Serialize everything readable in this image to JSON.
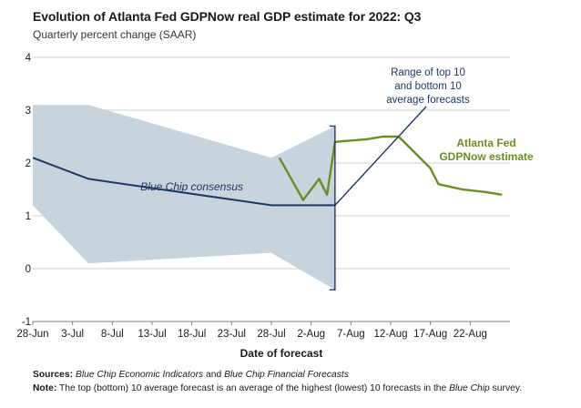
{
  "header": {
    "title": "Evolution of Atlanta Fed GDPNow real GDP estimate for 2022: Q3",
    "subtitle": "Quarterly percent change (SAAR)"
  },
  "footer": {
    "sources_label": "Sources:",
    "sources_text_1": "Blue Chip Economic Indicators",
    "sources_text_2": " and ",
    "sources_text_3": "Blue Chip Financial Forecasts",
    "note_label": "Note:",
    "note_text_1": " The top (bottom) 10 average forecast is an average of the highest (lowest) 10 forecasts in the ",
    "note_text_2": "Blue Chip",
    "note_text_3": " survey."
  },
  "chart_data": {
    "type": "line",
    "title": "Evolution of Atlanta Fed GDPNow real GDP estimate for 2022: Q3",
    "subtitle": "Quarterly percent change (SAAR)",
    "xlabel": "Date of forecast",
    "ylabel": "",
    "ylim": [
      -1,
      4
    ],
    "yticks": [
      -1,
      0,
      1,
      2,
      3,
      4
    ],
    "x_start": "28-Jun",
    "x_end": "27-Aug",
    "xticks": [
      "28-Jun",
      "3-Jul",
      "8-Jul",
      "13-Jul",
      "18-Jul",
      "23-Jul",
      "28-Jul",
      "2-Aug",
      "7-Aug",
      "12-Aug",
      "17-Aug",
      "22-Aug"
    ],
    "grid": "horizontal",
    "colors": {
      "blue_chip": "#1f3864",
      "gdpnow": "#6b8e23",
      "range": "#c7d3dd",
      "annotation": "#1f3864"
    },
    "series": [
      {
        "name": "Blue Chip consensus",
        "x": [
          "28-Jun",
          "5-Jul",
          "28-Jul",
          "5-Aug"
        ],
        "values": [
          2.1,
          1.7,
          1.2,
          1.2
        ]
      },
      {
        "name": "Atlanta Fed GDPNow estimate",
        "x": [
          "29-Jul",
          "1-Aug",
          "3-Aug",
          "4-Aug",
          "5-Aug",
          "9-Aug",
          "11-Aug",
          "13-Aug",
          "15-Aug",
          "17-Aug",
          "18-Aug",
          "21-Aug",
          "24-Aug",
          "26-Aug"
        ],
        "values": [
          2.1,
          1.3,
          1.7,
          1.4,
          2.4,
          2.45,
          2.5,
          2.5,
          2.2,
          1.9,
          1.6,
          1.5,
          1.45,
          1.4
        ]
      }
    ],
    "range_band": {
      "name": "Range of top 10 and bottom 10 average forecasts",
      "x": [
        "28-Jun",
        "5-Jul",
        "28-Jul",
        "5-Aug"
      ],
      "upper": [
        3.1,
        3.1,
        2.1,
        2.7
      ],
      "lower": [
        1.2,
        0.1,
        0.3,
        -0.4
      ]
    },
    "annotations": [
      {
        "text": "Blue Chip consensus",
        "x": "18-Jul",
        "y": 1.55
      },
      {
        "lines": [
          "Range of top 10",
          "and bottom 10",
          "average forecasts"
        ]
      },
      {
        "lines": [
          "Atlanta Fed",
          "GDPNow estimate"
        ]
      }
    ]
  }
}
